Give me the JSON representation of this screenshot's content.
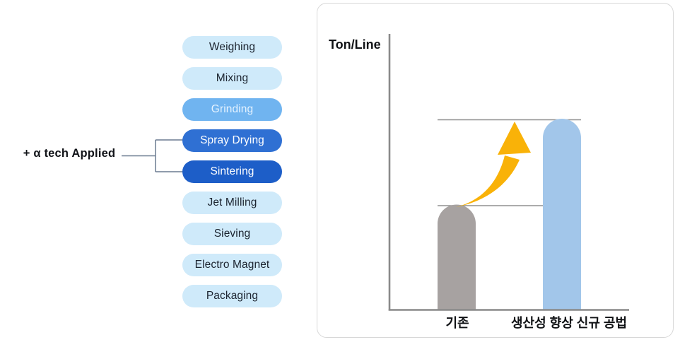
{
  "process_flow": {
    "annotation": {
      "label": "+  α tech Applied",
      "connects_to": [
        "Spray Drying",
        "Sintering"
      ],
      "line_color": "#6a7a90"
    },
    "steps": [
      {
        "label": "Weighing",
        "bg": "#cfeafa",
        "fg": "#1c2430"
      },
      {
        "label": "Mixing",
        "bg": "#cfeafa",
        "fg": "#1c2430"
      },
      {
        "label": "Grinding",
        "bg": "#70b4f0",
        "fg": "#e4f2ff"
      },
      {
        "label": "Spray Drying",
        "bg": "#2f70d3",
        "fg": "#ffffff"
      },
      {
        "label": "Sintering",
        "bg": "#1d5ec8",
        "fg": "#ffffff"
      },
      {
        "label": "Jet Milling",
        "bg": "#cfeafa",
        "fg": "#1c2430"
      },
      {
        "label": "Sieving",
        "bg": "#cfeafa",
        "fg": "#1c2430"
      },
      {
        "label": "Electro Magnet",
        "bg": "#cfeafa",
        "fg": "#1c2430"
      },
      {
        "label": "Packaging",
        "bg": "#cfeafa",
        "fg": "#1c2430"
      }
    ]
  },
  "chart_data": {
    "type": "bar",
    "title": "",
    "ylabel": "Ton/Line",
    "xlabel": "",
    "categories": [
      "기존",
      "생산성 향상 신규 공법"
    ],
    "values": [
      55,
      100
    ],
    "value_scale": "relative (no numeric axis labels shown; 기존 bar ≈ 55% height of 신규 공법 bar)",
    "bar_colors": [
      "#a7a2a1",
      "#a2c6ea"
    ],
    "axis_color": "#8a8a8a",
    "reference_line_color": "#8f8f8f",
    "reference_lines": "thin horizontal guide line at the top of each bar",
    "annotation_arrow": {
      "shape": "curved swoosh arrow pointing up-right",
      "meaning": "increase from 기존 to 생산성 향상 신규 공법",
      "color": "#f9b208"
    },
    "grid": false,
    "legend": false
  }
}
